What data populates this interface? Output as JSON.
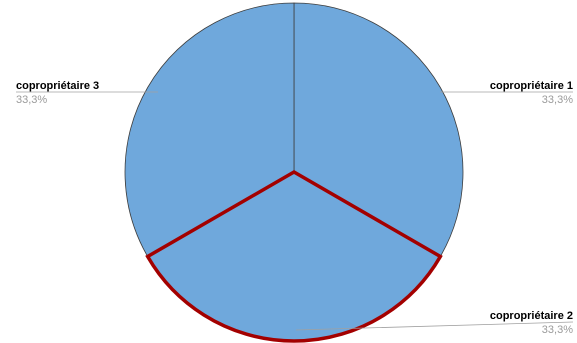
{
  "chart_data": {
    "type": "pie",
    "slices": [
      {
        "name": "copropriétaire 1",
        "value": 33.3,
        "label": "33,3%",
        "highlighted": false
      },
      {
        "name": "copropriétaire 2",
        "value": 33.3,
        "label": "33,3%",
        "highlighted": true
      },
      {
        "name": "copropriétaire 3",
        "value": 33.3,
        "label": "33,3%",
        "highlighted": false
      }
    ],
    "slice_color": "#6fa8dc",
    "edge_color": "#3d3d3d",
    "highlight_color": "#a30000",
    "leader_color": "#a0a0a0"
  }
}
